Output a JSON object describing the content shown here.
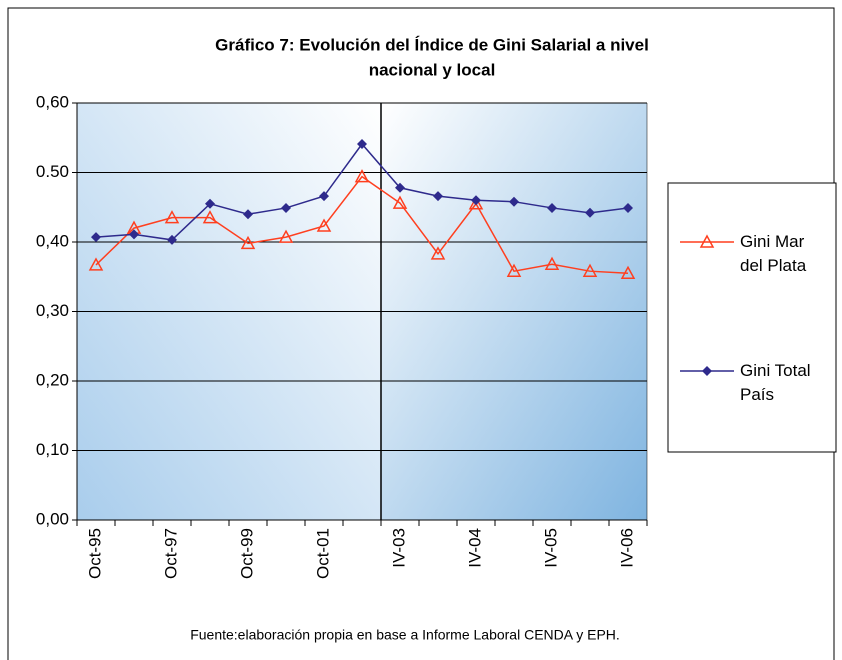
{
  "chart_data": {
    "type": "line",
    "title": [
      "Gráfico 7: Evolución del Índice de Gini Salarial a nivel",
      "nacional y local"
    ],
    "categories": [
      "Oct-95",
      null,
      "Oct-97",
      null,
      "Oct-99",
      null,
      "Oct-01",
      null,
      "IV-03",
      null,
      "IV-04",
      null,
      "IV-05",
      null,
      "IV-06"
    ],
    "series": [
      {
        "name": "Gini Mar del Plata",
        "color": "#ff3f1f",
        "marker": "triangle",
        "values": [
          0.367,
          0.42,
          0.435,
          0.435,
          0.398,
          0.407,
          0.423,
          0.494,
          0.456,
          0.383,
          0.455,
          0.358,
          0.368,
          0.358,
          0.355
        ]
      },
      {
        "name": "Gini Total País",
        "color": "#2e2a8c",
        "marker": "diamond",
        "values": [
          0.407,
          0.411,
          0.403,
          0.455,
          0.44,
          0.449,
          0.466,
          0.541,
          0.478,
          0.466,
          0.46,
          0.458,
          0.449,
          0.442,
          0.449
        ]
      }
    ],
    "ylim": [
      0,
      0.6
    ],
    "yticks": [
      {
        "value": 0,
        "label": "0,00"
      },
      {
        "value": 0.1,
        "label": "0,10"
      },
      {
        "value": 0.2,
        "label": "0,20"
      },
      {
        "value": 0.3,
        "label": "0,30"
      },
      {
        "value": 0.4,
        "label": "0,40"
      },
      {
        "value": 0.5,
        "label": "0.50"
      },
      {
        "value": 0.6,
        "label": "0,60"
      }
    ],
    "grid": true,
    "legend": "right",
    "source": "Fuente:elaboración propia en base a Informe Laboral CENDA y EPH."
  }
}
